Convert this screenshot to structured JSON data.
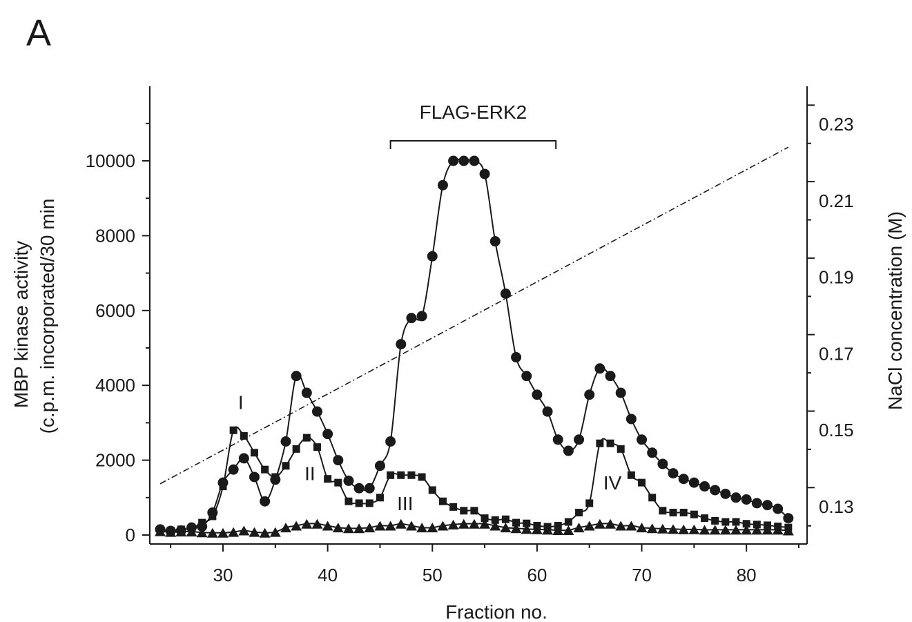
{
  "panel_label": "A",
  "chart_data": {
    "type": "line",
    "xlabel": "Fraction no.",
    "ylabel_lines": [
      "MBP kinase activity",
      "(c.p.m. incorporated/30 min"
    ],
    "y2label": "NaCl concentration (M)",
    "xlim": [
      23,
      85
    ],
    "ylim": [
      0,
      12000
    ],
    "y2lim": [
      0.121,
      0.239
    ],
    "x_ticks": [
      30,
      40,
      50,
      60,
      70,
      80
    ],
    "y_ticks": [
      0,
      2000,
      4000,
      6000,
      8000,
      10000
    ],
    "y2_ticks": [
      "0.13",
      "0.15",
      "0.17",
      "0.19",
      "0.21",
      "0.23"
    ],
    "x": [
      24,
      25,
      26,
      27,
      28,
      29,
      30,
      31,
      32,
      33,
      34,
      35,
      36,
      37,
      38,
      39,
      40,
      41,
      42,
      43,
      44,
      45,
      46,
      47,
      48,
      49,
      50,
      51,
      52,
      53,
      54,
      55,
      56,
      57,
      58,
      59,
      60,
      61,
      62,
      63,
      64,
      65,
      66,
      67,
      68,
      69,
      70,
      71,
      72,
      73,
      74,
      75,
      76,
      77,
      78,
      79,
      80,
      81,
      82,
      83,
      84
    ],
    "series": [
      {
        "marker": "circle",
        "values": [
          150,
          110,
          120,
          200,
          230,
          600,
          1400,
          1750,
          2050,
          1550,
          900,
          1480,
          2500,
          4250,
          3800,
          3300,
          2700,
          2000,
          1450,
          1250,
          1250,
          1850,
          2500,
          5100,
          5800,
          5850,
          7450,
          9350,
          10000,
          10000,
          10000,
          9650,
          7850,
          6450,
          4750,
          4250,
          3750,
          3300,
          2550,
          2250,
          2550,
          3750,
          4450,
          4250,
          3800,
          3100,
          2550,
          2200,
          1900,
          1650,
          1500,
          1400,
          1300,
          1200,
          1100,
          1000,
          950,
          850,
          800,
          700,
          450
        ]
      },
      {
        "marker": "square",
        "values": [
          130,
          120,
          150,
          180,
          330,
          500,
          1300,
          2800,
          2650,
          2200,
          1750,
          1550,
          1850,
          2300,
          2600,
          2350,
          1500,
          1400,
          900,
          850,
          850,
          1000,
          1600,
          1600,
          1600,
          1550,
          1200,
          900,
          750,
          650,
          650,
          450,
          400,
          420,
          330,
          310,
          250,
          220,
          250,
          350,
          600,
          850,
          2450,
          2450,
          2300,
          1600,
          1400,
          1000,
          650,
          600,
          600,
          550,
          450,
          380,
          350,
          350,
          300,
          280,
          260,
          230,
          200
        ]
      },
      {
        "marker": "triangle",
        "values": [
          100,
          80,
          90,
          90,
          70,
          60,
          60,
          80,
          120,
          80,
          60,
          80,
          200,
          250,
          300,
          300,
          250,
          200,
          180,
          180,
          200,
          250,
          250,
          300,
          250,
          200,
          200,
          250,
          280,
          300,
          300,
          300,
          250,
          200,
          180,
          160,
          150,
          140,
          130,
          130,
          200,
          250,
          300,
          300,
          250,
          250,
          200,
          180,
          170,
          160,
          150,
          150,
          140,
          140,
          140,
          140,
          140,
          140,
          140,
          140,
          120
        ]
      }
    ],
    "nacl_gradient": {
      "x": [
        24,
        84
      ],
      "y": [
        0.136,
        0.224
      ]
    },
    "bracket": {
      "label": "FLAG-ERK2",
      "x_start": 46,
      "x_end": 61.8
    },
    "peak_labels": [
      {
        "text": "I",
        "x": 31.7,
        "y": 3550
      },
      {
        "text": "II",
        "x": 38.3,
        "y": 1650
      },
      {
        "text": "III",
        "x": 47.4,
        "y": 850
      },
      {
        "text": "IV",
        "x": 67.2,
        "y": 1400
      }
    ]
  }
}
